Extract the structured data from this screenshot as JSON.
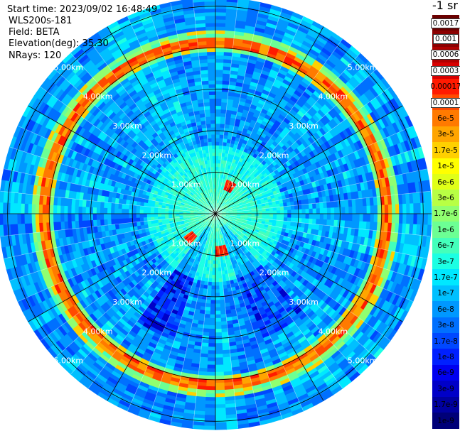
{
  "info": {
    "start_time": "Start time: 2023/09/02 16:48:49",
    "instrument": "WLS200s-181",
    "field": "Field: BETA",
    "elevation": "Elevation(deg): 35.30",
    "nrays": "NRays: 120"
  },
  "colorbar": {
    "unit_label": "-1 sr",
    "entries": [
      {
        "label": "0.0017",
        "color": "#6b0000",
        "boxed": true
      },
      {
        "label": "0.001",
        "color": "#8c0000",
        "boxed": true
      },
      {
        "label": "0.0006",
        "color": "#b00000",
        "boxed": true
      },
      {
        "label": "0.0003",
        "color": "#d80000",
        "boxed": true
      },
      {
        "label": "0.00017",
        "color": "#ff1a00",
        "boxed": false
      },
      {
        "label": "0.0001",
        "color": "#ff4a00",
        "boxed": true
      },
      {
        "label": "6e-5",
        "color": "#ff7a00",
        "boxed": false
      },
      {
        "label": "3e-5",
        "color": "#ffa500",
        "boxed": false
      },
      {
        "label": "1.7e-5",
        "color": "#ffd000",
        "boxed": false
      },
      {
        "label": "1e-5",
        "color": "#ffff00",
        "boxed": false
      },
      {
        "label": "6e-6",
        "color": "#e0ff18",
        "boxed": false
      },
      {
        "label": "3e-6",
        "color": "#b8ff44",
        "boxed": false
      },
      {
        "label": "1.7e-6",
        "color": "#90ff70",
        "boxed": false
      },
      {
        "label": "1e-6",
        "color": "#6cff94",
        "boxed": false
      },
      {
        "label": "6e-7",
        "color": "#44ffbb",
        "boxed": false
      },
      {
        "label": "3e-7",
        "color": "#1cffe3",
        "boxed": false
      },
      {
        "label": "1.7e-7",
        "color": "#00e8ff",
        "boxed": false
      },
      {
        "label": "1e-7",
        "color": "#00c0ff",
        "boxed": false
      },
      {
        "label": "6e-8",
        "color": "#0098ff",
        "boxed": false
      },
      {
        "label": "3e-8",
        "color": "#0070ff",
        "boxed": false
      },
      {
        "label": "1.7e-8",
        "color": "#0048ff",
        "boxed": false
      },
      {
        "label": "1e-8",
        "color": "#0020ff",
        "boxed": false
      },
      {
        "label": "6e-9",
        "color": "#0000f0",
        "boxed": false
      },
      {
        "label": "3e-9",
        "color": "#0000c8",
        "boxed": false
      },
      {
        "label": "1.7e-9",
        "color": "#0000a0",
        "boxed": false
      },
      {
        "label": "1e-9",
        "color": "#000078",
        "boxed": false
      }
    ]
  },
  "chart_data": {
    "type": "heatmap",
    "projection": "polar-ppi",
    "field": "BETA",
    "nrays": 120,
    "range_unit": "km",
    "range_rings_km": [
      1.0,
      2.0,
      3.0,
      4.0,
      5.0
    ],
    "range_ring_labels": [
      "1.00km",
      "2.00km",
      "3.00km",
      "4.00km",
      "5.00km"
    ],
    "spoke_angles_deg": [
      0,
      30,
      60,
      90,
      120,
      150,
      180,
      210,
      240,
      270,
      300,
      330
    ],
    "aerosol_ring_km": 4.12,
    "near_features": [
      {
        "azimuth_deg": 25,
        "range_km": 0.7
      },
      {
        "azimuth_deg": 225,
        "range_km": 0.8
      },
      {
        "azimuth_deg": 170,
        "range_km": 0.85
      }
    ]
  }
}
